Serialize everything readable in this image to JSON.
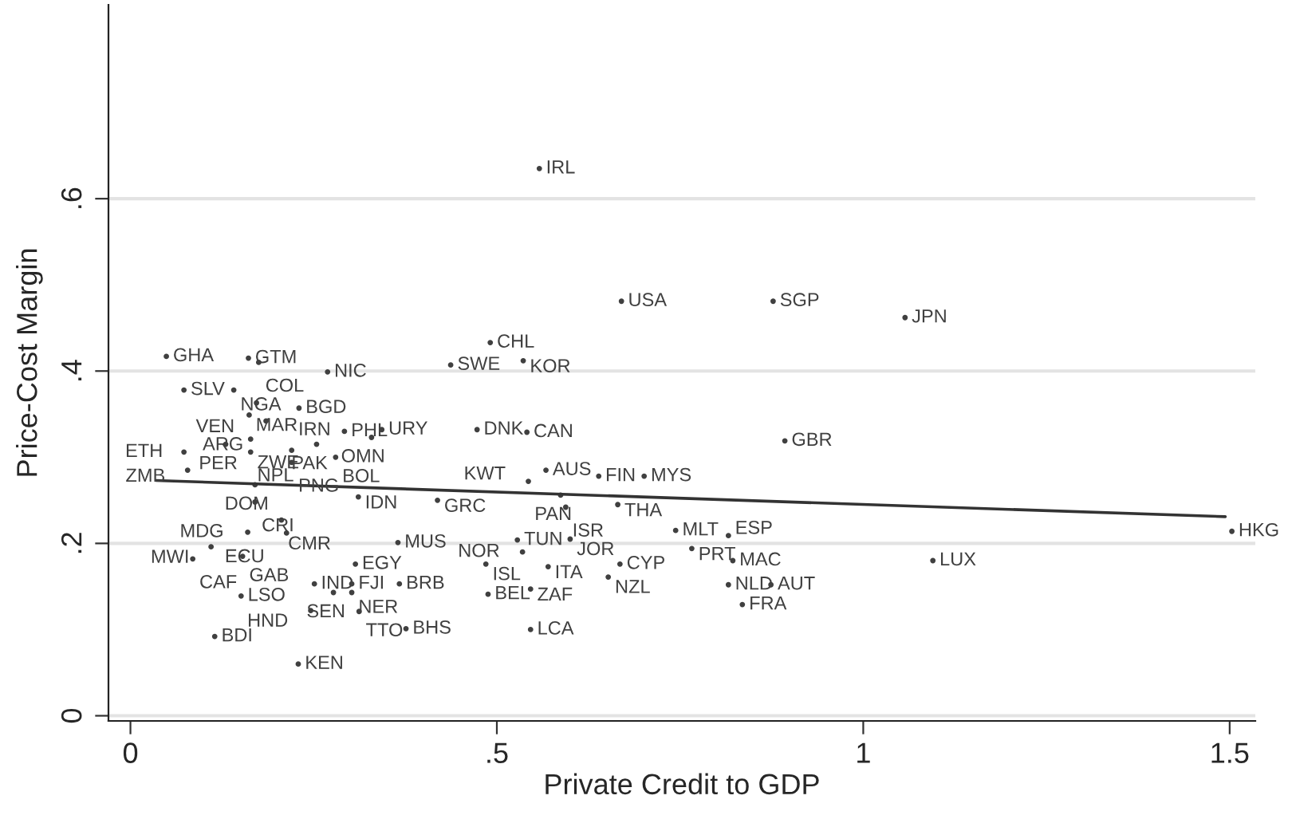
{
  "chart_data": {
    "type": "scatter",
    "xlabel": "Private Credit to GDP",
    "ylabel": "Price-Cost Margin",
    "xlim": [
      -0.03,
      1.535
    ],
    "ylim": [
      -0.006,
      0.825
    ],
    "xticks": [
      0,
      {
        "value": 0.5,
        "label": ".5"
      },
      1,
      1.5
    ],
    "yticks": [
      0,
      {
        "value": 0.2,
        "label": ".2"
      },
      {
        "value": 0.4,
        "label": ".4"
      },
      {
        "value": 0.6,
        "label": ".6"
      }
    ],
    "grid": "y",
    "series": [
      {
        "color": "#404040",
        "marker": "circle",
        "x": [
          0.049,
          0.161,
          0.175,
          0.269,
          0.073,
          0.141,
          0.162,
          0.172,
          0.185,
          0.23,
          0.292,
          0.343,
          0.329,
          0.13,
          0.164,
          0.073,
          0.164,
          0.22,
          0.254,
          0.28,
          0.22,
          0.078,
          0.17,
          0.17,
          0.311,
          0.419,
          0.206,
          0.16,
          0.213,
          0.365,
          0.11,
          0.085,
          0.153,
          0.307,
          0.151,
          0.251,
          0.302,
          0.277,
          0.302,
          0.367,
          0.246,
          0.312,
          0.376,
          0.115,
          0.229,
          0.437,
          0.473,
          0.541,
          0.491,
          0.536,
          0.567,
          0.543,
          0.639,
          0.701,
          0.587,
          0.594,
          0.665,
          0.528,
          0.6,
          0.535,
          0.485,
          0.57,
          0.668,
          0.652,
          0.488,
          0.546,
          0.546,
          0.744,
          0.766,
          0.816,
          0.822,
          0.816,
          0.874,
          0.835,
          0.893,
          0.877,
          1.057,
          1.095,
          1.503,
          0.558,
          0.67
        ],
        "values": [
          0.417,
          0.415,
          0.41,
          0.399,
          0.378,
          0.378,
          0.349,
          0.363,
          0.342,
          0.357,
          0.33,
          0.332,
          0.323,
          0.315,
          0.321,
          0.306,
          0.306,
          0.308,
          0.315,
          0.3,
          0.294,
          0.285,
          0.268,
          0.248,
          0.254,
          0.25,
          0.227,
          0.213,
          0.212,
          0.201,
          0.196,
          0.182,
          0.185,
          0.176,
          0.139,
          0.153,
          0.153,
          0.143,
          0.143,
          0.153,
          0.122,
          0.121,
          0.101,
          0.092,
          0.06,
          0.407,
          0.332,
          0.329,
          0.433,
          0.412,
          0.285,
          0.272,
          0.278,
          0.278,
          0.256,
          0.242,
          0.245,
          0.204,
          0.205,
          0.19,
          0.176,
          0.173,
          0.176,
          0.161,
          0.141,
          0.147,
          0.1,
          0.215,
          0.194,
          0.209,
          0.18,
          0.152,
          0.152,
          0.129,
          0.319,
          0.481,
          0.462,
          0.18,
          0.214,
          0.635,
          0.481
        ],
        "value_labels": [
          "GHA",
          "GTM",
          "COL",
          "NIC",
          "SLV",
          "NGA",
          "MAR",
          "VEN",
          "ARG",
          "BGD",
          "PHL",
          "URY",
          "OMN",
          "PER",
          "ZWE",
          "ETH",
          "NPL",
          "IRN",
          "PAK",
          "BOL",
          "PNG",
          "ZMB",
          "DOM",
          "CRI",
          "IDN",
          "GRC",
          "CMR",
          "MDG",
          "ECU",
          "MUS",
          "MWI",
          "CAF",
          "GAB",
          "EGY",
          "LSO",
          "IND",
          "FJI",
          "SEN",
          "NER",
          "BRB",
          "HND",
          "TTO",
          "BHS",
          "BDI",
          "KEN",
          "SWE",
          "DNK",
          "CAN",
          "CHL",
          "KOR",
          "AUS",
          "KWT",
          "FIN",
          "MYS",
          "PAN",
          "ISR",
          "THA",
          "TUN",
          "JOR",
          "NOR",
          "ISL",
          "ITA",
          "CYP",
          "NZL",
          "BEL",
          "ZAF",
          "LCA",
          "MLT",
          "PRT",
          "ESP",
          "MAC",
          "NLD",
          "AUT",
          "FRA",
          "GBR",
          "SGP",
          "JPN",
          "LUX",
          "HKG",
          "IRL",
          "USA"
        ]
      },
      {
        "type": "line",
        "color": "#333333",
        "x": [
          0.035,
          1.494
        ],
        "values": [
          0.273,
          0.231
        ]
      }
    ]
  }
}
